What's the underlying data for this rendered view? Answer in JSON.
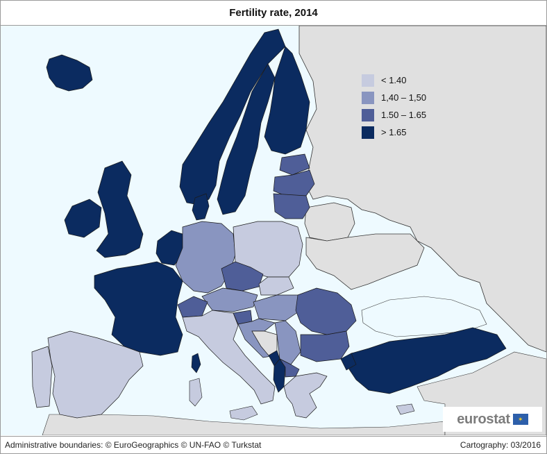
{
  "title": "Fertility rate, 2014",
  "legend": {
    "classes": [
      {
        "label": "< 1.40",
        "color": "#c6cbdf"
      },
      {
        "label": "1,40 – 1,50",
        "color": "#8995c0"
      },
      {
        "label": "1.50 – 1.65",
        "color": "#4f5e98"
      },
      {
        "label": "> 1.65",
        "color": "#0b2b60"
      }
    ]
  },
  "colors": {
    "sea": "#eefaff",
    "non_data_land": "#e0e0e0",
    "border": "#1a1a1a"
  },
  "logo": {
    "text": "eurostat",
    "flag_icon": "eu-flag-icon"
  },
  "footer": {
    "credits": "Administrative boundaries: © EuroGeographics © UN-FAO © Turkstat",
    "cartography": "Cartography: 03/2016"
  }
}
